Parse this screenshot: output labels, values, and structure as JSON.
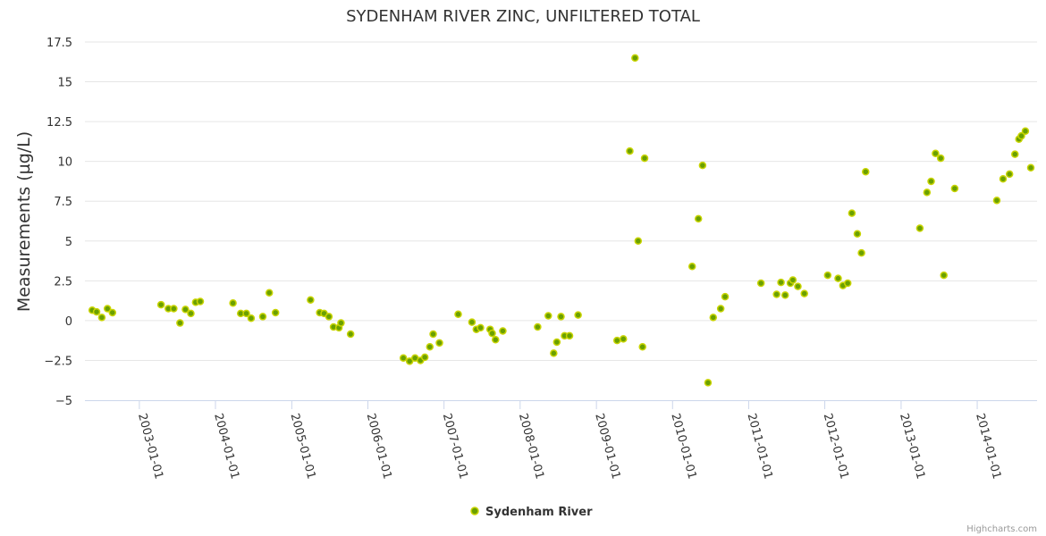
{
  "chart_data": {
    "type": "scatter",
    "title": "SYDENHAM RIVER ZINC, UNFILTERED TOTAL",
    "ylabel": "Measurements (µg/L)",
    "xlabel": "",
    "ylim": [
      -5,
      17.5
    ],
    "xlim": [
      "2002-04-15",
      "2014-10-15"
    ],
    "yticks": [
      -5,
      -2.5,
      0,
      2.5,
      5,
      7.5,
      10,
      12.5,
      15,
      17.5
    ],
    "ytick_labels": [
      "−5",
      "−2.5",
      "0",
      "2.5",
      "5",
      "7.5",
      "10",
      "12.5",
      "15",
      "17.5"
    ],
    "xticks": [
      "2003-01-01",
      "2004-01-01",
      "2005-01-01",
      "2006-01-01",
      "2007-01-01",
      "2008-01-01",
      "2009-01-01",
      "2010-01-01",
      "2011-01-01",
      "2012-01-01",
      "2013-01-01",
      "2014-01-01"
    ],
    "grid": true,
    "legend_position": "bottom-center",
    "series": [
      {
        "name": "Sydenham River",
        "color": "#6aa000",
        "points": [
          [
            "2002-05-20",
            0.65
          ],
          [
            "2002-06-10",
            0.55
          ],
          [
            "2002-07-05",
            0.2
          ],
          [
            "2002-08-01",
            0.75
          ],
          [
            "2002-08-25",
            0.5
          ],
          [
            "2003-04-15",
            1.0
          ],
          [
            "2003-05-20",
            0.75
          ],
          [
            "2003-06-15",
            0.75
          ],
          [
            "2003-07-15",
            -0.15
          ],
          [
            "2003-08-10",
            0.7
          ],
          [
            "2003-09-05",
            0.45
          ],
          [
            "2003-09-28",
            1.15
          ],
          [
            "2003-10-20",
            1.2
          ],
          [
            "2004-03-25",
            1.1
          ],
          [
            "2004-05-01",
            0.45
          ],
          [
            "2004-05-28",
            0.45
          ],
          [
            "2004-06-20",
            0.15
          ],
          [
            "2004-08-15",
            0.25
          ],
          [
            "2004-09-15",
            1.75
          ],
          [
            "2004-10-15",
            0.5
          ],
          [
            "2005-04-01",
            1.3
          ],
          [
            "2005-05-15",
            0.5
          ],
          [
            "2005-06-05",
            0.45
          ],
          [
            "2005-06-28",
            0.25
          ],
          [
            "2005-07-20",
            -0.4
          ],
          [
            "2005-08-15",
            -0.45
          ],
          [
            "2005-08-25",
            -0.15
          ],
          [
            "2005-10-10",
            -0.85
          ],
          [
            "2006-06-20",
            -2.35
          ],
          [
            "2006-07-20",
            -2.55
          ],
          [
            "2006-08-15",
            -2.35
          ],
          [
            "2006-09-10",
            -2.5
          ],
          [
            "2006-10-01",
            -2.3
          ],
          [
            "2006-10-25",
            -1.65
          ],
          [
            "2006-11-10",
            -0.85
          ],
          [
            "2006-12-10",
            -1.4
          ],
          [
            "2007-03-10",
            0.4
          ],
          [
            "2007-05-15",
            -0.1
          ],
          [
            "2007-06-05",
            -0.55
          ],
          [
            "2007-06-25",
            -0.45
          ],
          [
            "2007-08-10",
            -0.55
          ],
          [
            "2007-08-20",
            -0.8
          ],
          [
            "2007-09-05",
            -1.2
          ],
          [
            "2007-10-10",
            -0.65
          ],
          [
            "2008-03-25",
            -0.4
          ],
          [
            "2008-05-15",
            0.3
          ],
          [
            "2008-06-10",
            -2.05
          ],
          [
            "2008-06-25",
            -1.35
          ],
          [
            "2008-07-15",
            0.25
          ],
          [
            "2008-08-01",
            -0.95
          ],
          [
            "2008-08-25",
            -0.95
          ],
          [
            "2008-10-05",
            0.35
          ],
          [
            "2009-04-10",
            -1.25
          ],
          [
            "2009-05-10",
            -1.15
          ],
          [
            "2009-06-10",
            10.65
          ],
          [
            "2009-07-05",
            16.5
          ],
          [
            "2009-07-20",
            5.0
          ],
          [
            "2009-08-10",
            -1.65
          ],
          [
            "2009-08-20",
            10.2
          ],
          [
            "2010-04-05",
            3.4
          ],
          [
            "2010-05-05",
            6.4
          ],
          [
            "2010-05-25",
            9.75
          ],
          [
            "2010-06-20",
            -3.9
          ],
          [
            "2010-07-15",
            0.2
          ],
          [
            "2010-08-20",
            0.75
          ],
          [
            "2010-09-10",
            1.5
          ],
          [
            "2011-03-01",
            2.35
          ],
          [
            "2011-05-15",
            1.65
          ],
          [
            "2011-06-05",
            2.4
          ],
          [
            "2011-06-25",
            1.6
          ],
          [
            "2011-07-20",
            2.35
          ],
          [
            "2011-08-01",
            2.55
          ],
          [
            "2011-08-25",
            2.15
          ],
          [
            "2011-09-25",
            1.7
          ],
          [
            "2012-01-15",
            2.85
          ],
          [
            "2012-03-05",
            2.65
          ],
          [
            "2012-03-28",
            2.2
          ],
          [
            "2012-04-20",
            2.35
          ],
          [
            "2012-05-10",
            6.75
          ],
          [
            "2012-06-05",
            5.45
          ],
          [
            "2012-06-25",
            4.25
          ],
          [
            "2012-07-15",
            9.35
          ],
          [
            "2013-04-01",
            5.8
          ],
          [
            "2013-05-05",
            8.05
          ],
          [
            "2013-05-25",
            8.75
          ],
          [
            "2013-06-15",
            10.5
          ],
          [
            "2013-07-10",
            10.2
          ],
          [
            "2013-07-25",
            2.85
          ],
          [
            "2013-09-15",
            8.3
          ],
          [
            "2014-04-05",
            7.55
          ],
          [
            "2014-05-05",
            8.9
          ],
          [
            "2014-06-05",
            9.2
          ],
          [
            "2014-07-01",
            10.45
          ],
          [
            "2014-07-20",
            11.4
          ],
          [
            "2014-08-01",
            11.6
          ],
          [
            "2014-08-20",
            11.9
          ],
          [
            "2014-09-15",
            9.6
          ]
        ]
      }
    ]
  },
  "credits": "Highcharts.com"
}
